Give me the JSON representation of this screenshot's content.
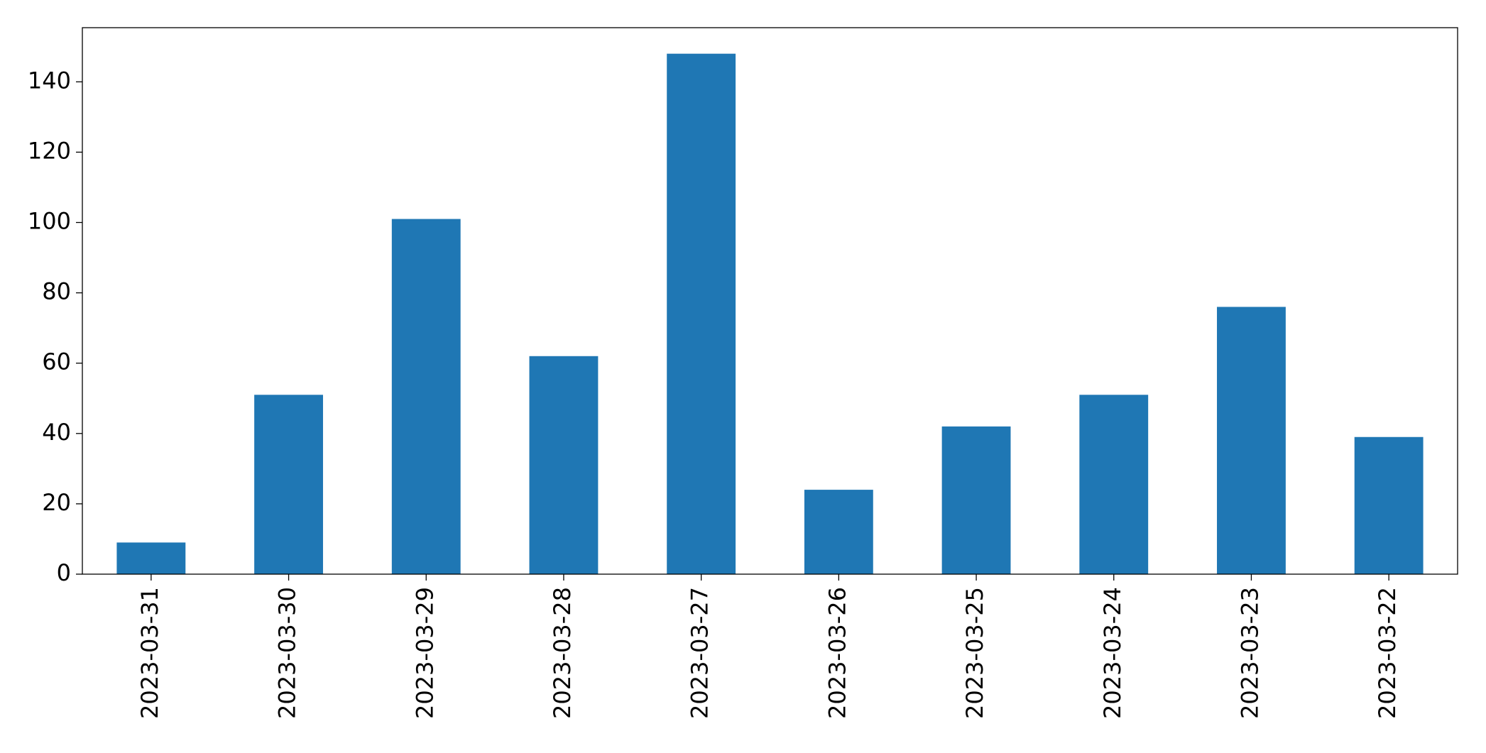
{
  "chart_data": {
    "type": "bar",
    "categories": [
      "2023-03-31",
      "2023-03-30",
      "2023-03-29",
      "2023-03-28",
      "2023-03-27",
      "2023-03-26",
      "2023-03-25",
      "2023-03-24",
      "2023-03-23",
      "2023-03-22"
    ],
    "values": [
      9,
      51,
      101,
      62,
      148,
      24,
      42,
      51,
      76,
      39
    ],
    "color": "#1f77b4",
    "ylim": [
      0,
      155.4
    ],
    "yticks": [
      0,
      20,
      40,
      60,
      80,
      100,
      120,
      140
    ],
    "grid": false
  }
}
